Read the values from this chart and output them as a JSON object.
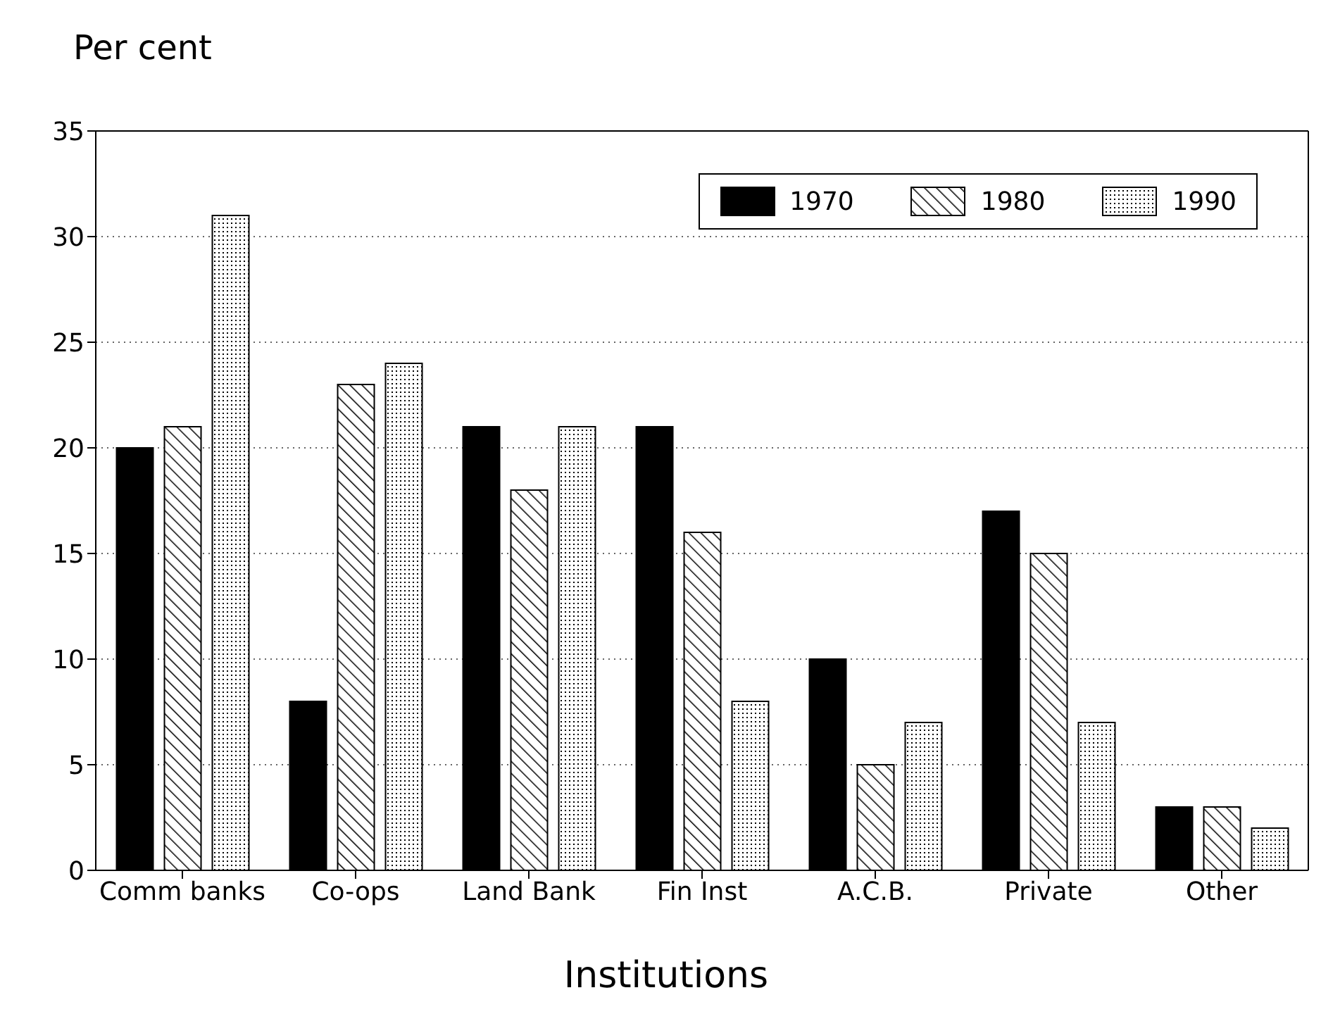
{
  "chart_data": {
    "type": "bar",
    "ylabel": "Per cent",
    "xlabel": "Institutions",
    "categories": [
      "Comm banks",
      "Co-ops",
      "Land Bank",
      "Fin Inst",
      "A.C.B.",
      "Private",
      "Other"
    ],
    "series": [
      {
        "name": "1970",
        "color": "#000000",
        "values": [
          20,
          8,
          21,
          21,
          10,
          17,
          3
        ]
      },
      {
        "name": "1980",
        "color": "#000000",
        "values": [
          21,
          23,
          18,
          16,
          5,
          15,
          3
        ]
      },
      {
        "name": "1990",
        "color": "#000000",
        "values": [
          31,
          24,
          21,
          8,
          7,
          7,
          2
        ]
      }
    ],
    "ylim": [
      0,
      35
    ],
    "yticks": [
      0,
      5,
      10,
      15,
      20,
      25,
      30,
      35
    ],
    "grid": "y",
    "legend": "top right"
  }
}
